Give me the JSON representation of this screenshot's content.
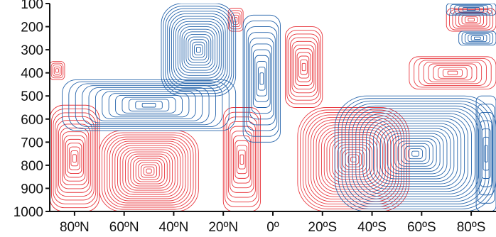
{
  "chart_data": {
    "type": "heatmap",
    "subtype": "contour",
    "title": "",
    "xlabel": "",
    "ylabel": "",
    "x_ticks": [
      "80ºN",
      "60ºN",
      "40ºN",
      "20ºN",
      "0º",
      "20ºS",
      "40ºS",
      "60ºS",
      "80ºS"
    ],
    "x_tick_values": [
      80,
      60,
      40,
      20,
      0,
      -20,
      -40,
      -60,
      -80
    ],
    "x_range": [
      90,
      -90
    ],
    "y_ticks": [
      "100",
      "200",
      "300",
      "400",
      "500",
      "600",
      "700",
      "800",
      "900",
      "1000"
    ],
    "y_tick_values": [
      100,
      200,
      300,
      400,
      500,
      600,
      700,
      800,
      900,
      1000
    ],
    "y_range": [
      1000,
      100
    ],
    "y_inverted": true,
    "grid": false,
    "legend": "none",
    "series": [
      {
        "color": "#e8333a",
        "sign": "positive"
      },
      {
        "color": "#1f5fa8",
        "sign": "negative"
      }
    ],
    "features": [
      {
        "sign": "positive",
        "lat": [
          90,
          70
        ],
        "p": [
          540,
          1000
        ],
        "amp": 1.0
      },
      {
        "sign": "positive",
        "lat": [
          90,
          84
        ],
        "p": [
          350,
          430
        ],
        "amp": 0.6
      },
      {
        "sign": "positive",
        "lat": [
          70,
          30
        ],
        "p": [
          650,
          1000
        ],
        "amp": 0.9
      },
      {
        "sign": "positive",
        "lat": [
          20,
          5
        ],
        "p": [
          550,
          1000
        ],
        "amp": 1.0
      },
      {
        "sign": "positive",
        "lat": [
          18,
          12
        ],
        "p": [
          120,
          220
        ],
        "amp": 0.7
      },
      {
        "sign": "positive",
        "lat": [
          -5,
          -20
        ],
        "p": [
          200,
          550
        ],
        "amp": 1.0
      },
      {
        "sign": "positive",
        "lat": [
          -10,
          -55
        ],
        "p": [
          550,
          1000
        ],
        "amp": 0.8
      },
      {
        "sign": "positive",
        "lat": [
          -55,
          -90
        ],
        "p": [
          330,
          470
        ],
        "amp": 0.8
      },
      {
        "sign": "positive",
        "lat": [
          -70,
          -90
        ],
        "p": [
          120,
          220
        ],
        "amp": 1.0
      },
      {
        "sign": "negative",
        "lat": [
          85,
          15
        ],
        "p": [
          430,
          650
        ],
        "amp": 0.9
      },
      {
        "sign": "negative",
        "lat": [
          45,
          15
        ],
        "p": [
          100,
          500
        ],
        "amp": 0.9
      },
      {
        "sign": "negative",
        "lat": [
          12,
          -3
        ],
        "p": [
          150,
          700
        ],
        "amp": 1.0
      },
      {
        "sign": "negative",
        "lat": [
          -25,
          -90
        ],
        "p": [
          500,
          1000
        ],
        "amp": 0.8
      },
      {
        "sign": "negative",
        "lat": [
          -70,
          -90
        ],
        "p": [
          100,
          150
        ],
        "amp": 1.0
      },
      {
        "sign": "negative",
        "lat": [
          -75,
          -90
        ],
        "p": [
          220,
          280
        ],
        "amp": 0.9
      },
      {
        "sign": "negative",
        "lat": [
          -82,
          -90
        ],
        "p": [
          500,
          1000
        ],
        "amp": 1.0
      }
    ]
  }
}
